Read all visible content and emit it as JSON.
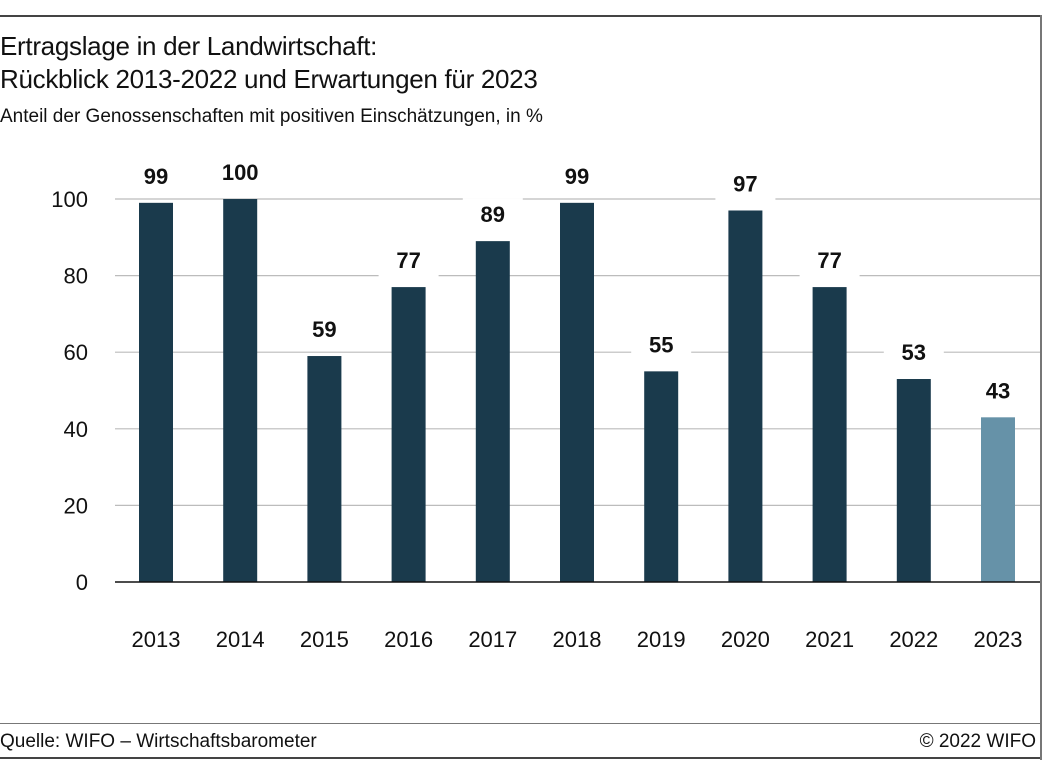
{
  "title_line1": "Ertragslage in der Landwirtschaft:",
  "title_line2": "Rückblick 2013-2022 und Erwartungen für 2023",
  "subtitle": "Anteil der Genossenschaften mit positiven Einschätzungen, in %",
  "source": "Quelle: WIFO – Wirtschaftsbarometer",
  "copyright": "© 2022 WIFO",
  "colors": {
    "bar": "#1a3a4c",
    "bar_forecast": "#6692a8",
    "grid": "#bcbcbc",
    "axis": "#111111"
  },
  "chart_data": {
    "type": "bar",
    "categories": [
      "2013",
      "2014",
      "2015",
      "2016",
      "2017",
      "2018",
      "2019",
      "2020",
      "2021",
      "2022",
      "2023"
    ],
    "values": [
      99,
      100,
      59,
      77,
      89,
      99,
      55,
      97,
      77,
      53,
      43
    ],
    "data_labels": [
      "99",
      "100",
      "59",
      "77",
      "89",
      "99",
      "55",
      "97",
      "77",
      "53",
      "43"
    ],
    "forecast_categories": [
      "2023"
    ],
    "ylim": [
      0,
      100
    ],
    "yticks": [
      0,
      20,
      40,
      60,
      80,
      100
    ],
    "grid": true,
    "legend": "none"
  }
}
